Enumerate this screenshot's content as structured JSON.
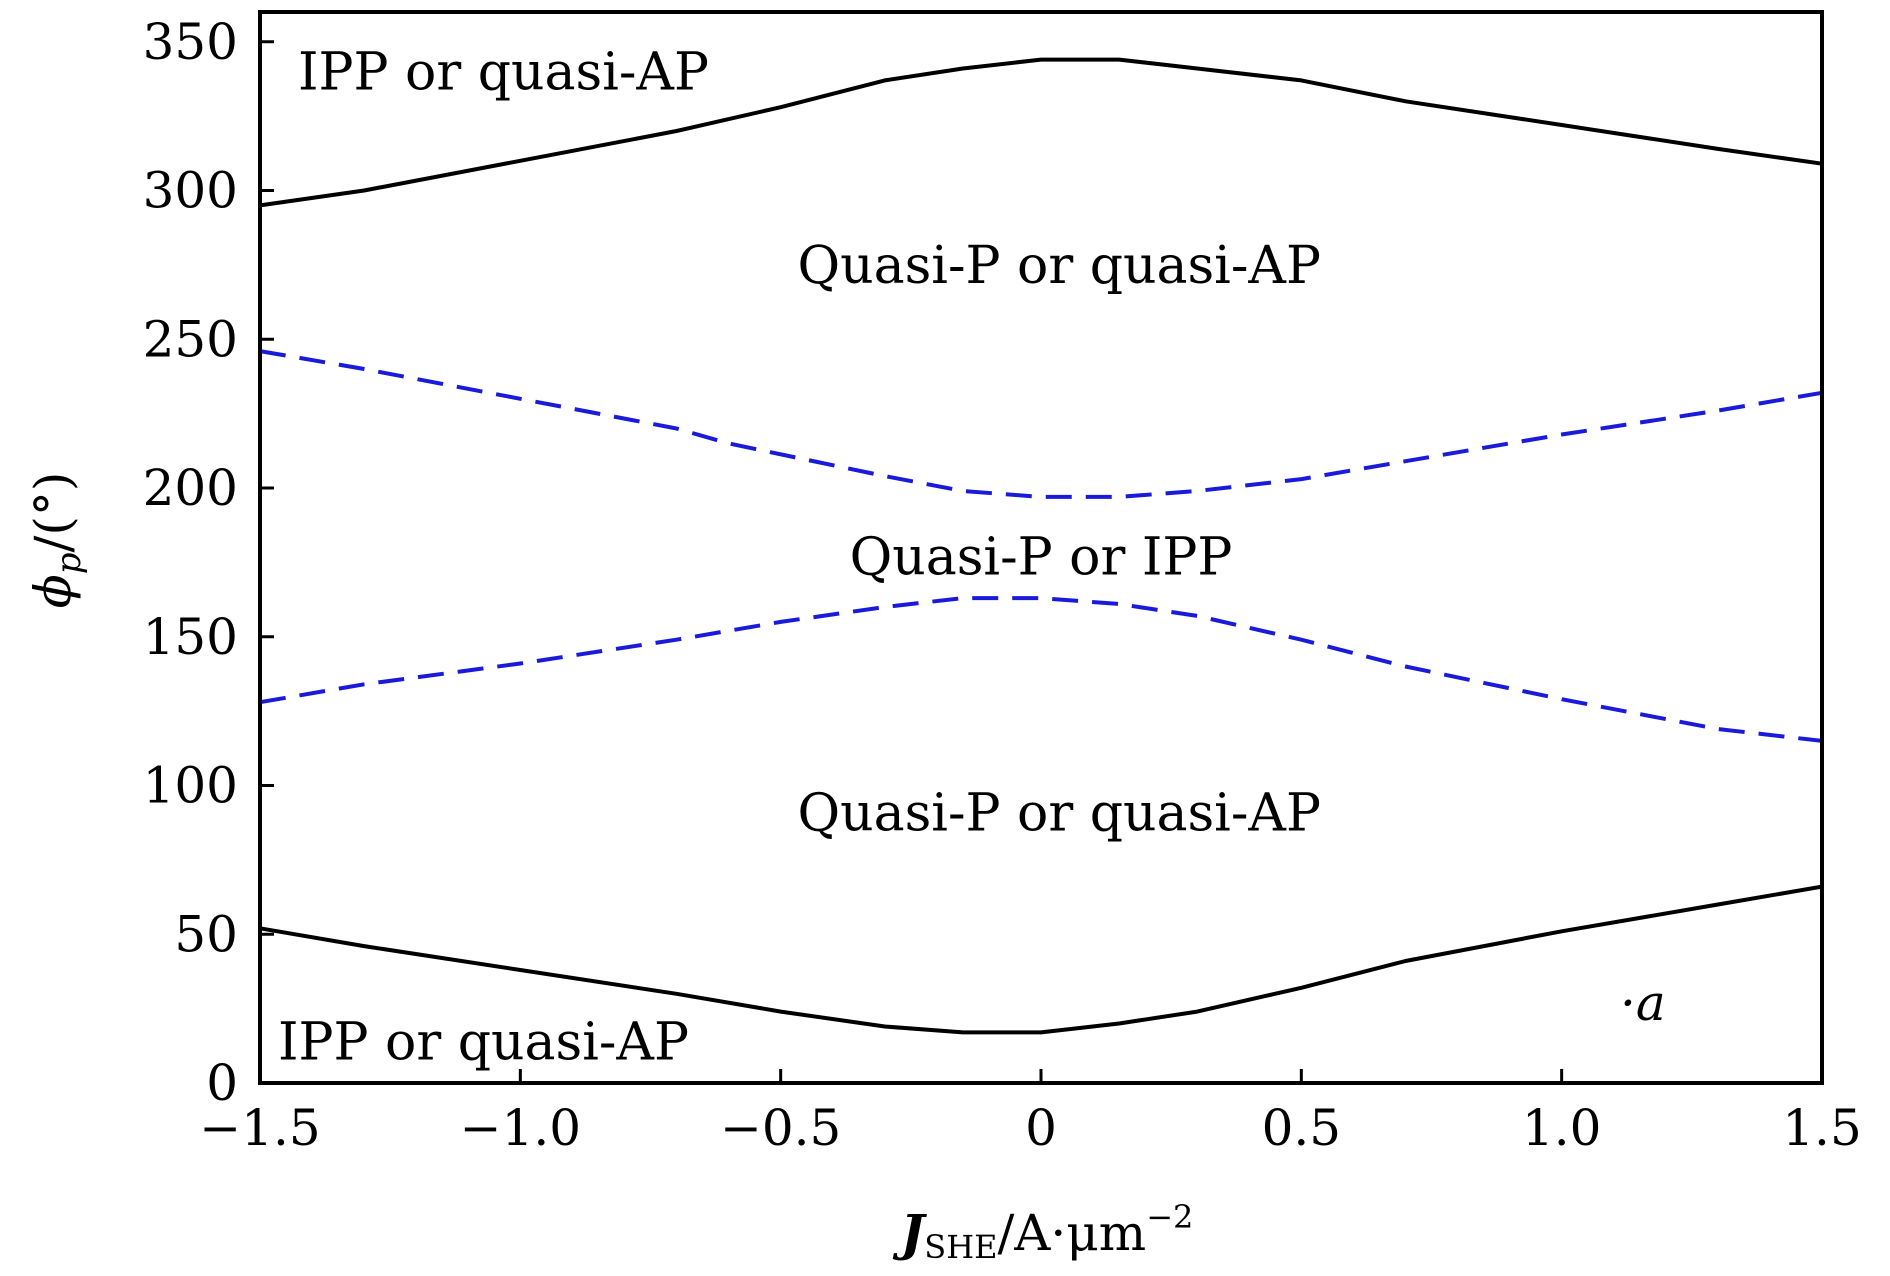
{
  "chart_data": {
    "type": "line",
    "xlabel": {
      "main": "J",
      "sub": "SHE",
      "unit": "/A·μm",
      "sup": "−2"
    },
    "ylabel": {
      "main": "ϕ",
      "sub": "p",
      "unit": "/(°)"
    },
    "xlim": [
      -1.5,
      1.5
    ],
    "ylim": [
      0,
      360
    ],
    "x_ticks": [
      -1.5,
      -1.0,
      -0.5,
      0,
      0.5,
      1.0,
      1.5
    ],
    "x_tick_labels": [
      "−1.5",
      "−1.0",
      "−0.5",
      "0",
      "0.5",
      "1.0",
      "1.5"
    ],
    "y_ticks": [
      0,
      50,
      100,
      150,
      200,
      250,
      300,
      350
    ],
    "y_tick_labels": [
      "0",
      "50",
      "100",
      "150",
      "200",
      "250",
      "300",
      "350"
    ],
    "series": [
      {
        "name": "upper-solid-boundary",
        "style": "solid",
        "color": "#000000",
        "x": [
          -1.5,
          -1.3,
          -1.0,
          -0.7,
          -0.5,
          -0.3,
          -0.15,
          0,
          0.15,
          0.3,
          0.5,
          0.7,
          1.0,
          1.3,
          1.5
        ],
        "y": [
          295,
          300,
          310,
          320,
          328,
          337,
          341,
          344,
          344,
          341,
          337,
          330,
          322,
          314,
          309
        ]
      },
      {
        "name": "upper-dashed-boundary",
        "style": "dashed",
        "color": "#1a1adb",
        "x": [
          -1.5,
          -1.3,
          -1.0,
          -0.7,
          -0.6,
          -0.3,
          -0.15,
          0,
          0.15,
          0.3,
          0.5,
          0.7,
          1.0,
          1.3,
          1.5
        ],
        "y": [
          246,
          240,
          230,
          220,
          215,
          204,
          199,
          197,
          197,
          199,
          203,
          209,
          218,
          226,
          232
        ]
      },
      {
        "name": "lower-dashed-boundary",
        "style": "dashed",
        "color": "#1a1adb",
        "x": [
          -1.5,
          -1.3,
          -1.0,
          -0.7,
          -0.5,
          -0.3,
          -0.15,
          0,
          0.15,
          0.3,
          0.5,
          0.7,
          1.0,
          1.3,
          1.5
        ],
        "y": [
          128,
          134,
          141,
          149,
          155,
          160,
          163,
          163,
          161,
          157,
          149,
          140,
          129,
          119,
          115
        ]
      },
      {
        "name": "lower-solid-boundary",
        "style": "solid",
        "color": "#000000",
        "x": [
          -1.5,
          -1.3,
          -1.0,
          -0.7,
          -0.5,
          -0.3,
          -0.15,
          0,
          0.15,
          0.3,
          0.5,
          0.7,
          1.0,
          1.3,
          1.5
        ],
        "y": [
          52,
          46,
          38,
          30,
          24,
          19,
          17,
          17,
          20,
          24,
          32,
          41,
          51,
          60,
          66
        ]
      }
    ],
    "annotations": [
      {
        "text": "IPP or quasi-AP",
        "x": -1.5,
        "y": 340,
        "anchor": "start"
      },
      {
        "text": "Quasi-P or quasi-AP",
        "x": 0.035,
        "y": 275,
        "anchor": "middle"
      },
      {
        "text": "Quasi-P or IPP",
        "x": 0.0,
        "y": 177,
        "anchor": "middle"
      },
      {
        "text": "Quasi-P or quasi-AP",
        "x": 0.035,
        "y": 91,
        "anchor": "middle"
      },
      {
        "text": "IPP or quasi-AP",
        "x": -1.5,
        "y": 14,
        "anchor": "start"
      }
    ],
    "panel_label": "·a"
  }
}
